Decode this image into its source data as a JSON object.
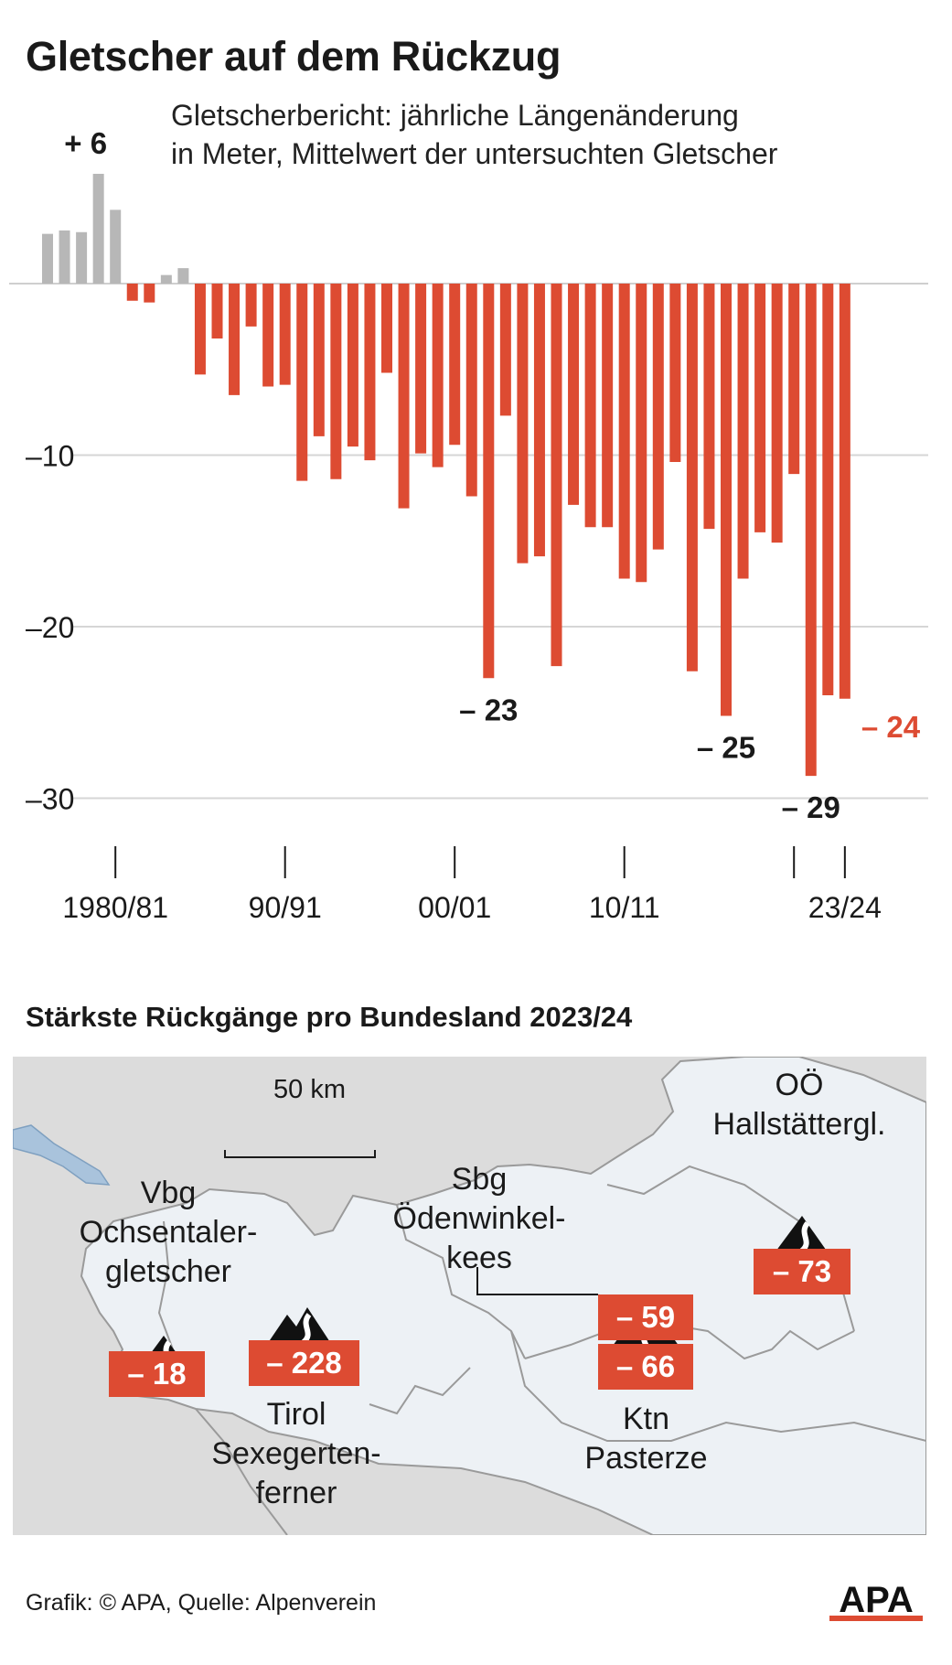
{
  "header": {
    "title": "Gletscher auf dem Rückzug",
    "subtitle_line1": "Gletscherbericht: jährliche Längenänderung",
    "subtitle_line2": "in Meter, Mittelwert der untersuchten Gletscher"
  },
  "chart_data": {
    "type": "bar",
    "ylabel": "",
    "xlabel": "",
    "ylim": [
      -33,
      8
    ],
    "y_ticks": [
      -10,
      -20,
      -30
    ],
    "y_tick_labels": [
      "–10",
      "–20",
      "–30"
    ],
    "x_tick_labels": [
      "1980/81",
      "90/91",
      "00/01",
      "10/11",
      "23/24"
    ],
    "x_tick_label_categories": [
      "1980/81",
      "1990/91",
      "2000/01",
      "2010/11",
      "2023/24"
    ],
    "extra_tick_category": "2020/21",
    "categories": [
      "1976/77",
      "1977/78",
      "1978/79",
      "1979/80",
      "1980/81",
      "1981/82",
      "1982/83",
      "1983/84",
      "1984/85",
      "1985/86",
      "1986/87",
      "1987/88",
      "1988/89",
      "1989/90",
      "1990/91",
      "1991/92",
      "1992/93",
      "1993/94",
      "1994/95",
      "1995/96",
      "1996/97",
      "1997/98",
      "1998/99",
      "1999/00",
      "2000/01",
      "2001/02",
      "2002/03",
      "2003/04",
      "2004/05",
      "2005/06",
      "2006/07",
      "2007/08",
      "2008/09",
      "2009/10",
      "2010/11",
      "2011/12",
      "2012/13",
      "2013/14",
      "2014/15",
      "2015/16",
      "2016/17",
      "2017/18",
      "2018/19",
      "2019/20",
      "2020/21",
      "2021/22",
      "2022/23",
      "2023/24"
    ],
    "values": [
      2.9,
      3.1,
      3.0,
      6.4,
      4.3,
      -1.0,
      -1.1,
      0.5,
      0.9,
      -5.3,
      -3.2,
      -6.5,
      -2.5,
      -6.0,
      -5.9,
      -11.5,
      -8.9,
      -11.4,
      -9.5,
      -10.3,
      -5.2,
      -13.1,
      -9.9,
      -10.7,
      -9.4,
      -12.4,
      -23.0,
      -7.7,
      -16.3,
      -15.9,
      -22.3,
      -12.9,
      -14.2,
      -14.2,
      -17.2,
      -17.4,
      -15.5,
      -10.4,
      -22.6,
      -14.3,
      -25.2,
      -17.2,
      -14.5,
      -15.1,
      -11.1,
      -28.7,
      -24.0,
      -24.2
    ],
    "positive_color": "#b7b7b7",
    "negative_color": "#dd4b32",
    "grid": true,
    "annotations": [
      {
        "category": "1979/80",
        "text": "+ 6",
        "color": "#1a1a1a"
      },
      {
        "category": "2002/03",
        "text": "– 23",
        "color": "#1a1a1a"
      },
      {
        "category": "2016/17",
        "text": "– 25",
        "color": "#1a1a1a"
      },
      {
        "category": "2021/22",
        "text": "– 29",
        "color": "#1a1a1a"
      },
      {
        "category": "2023/24",
        "text": "– 24",
        "color": "#dd4b32"
      }
    ]
  },
  "map": {
    "title": "Stärkste Rückgänge pro Bundesland  2023/24",
    "scale_label": "50 km",
    "vbg": {
      "state": "Vbg",
      "name_line1": "Ochsentaler-",
      "name_line2": "gletscher",
      "value": "– 18"
    },
    "tirol": {
      "state": "Tirol",
      "name_line1": "Sexegerten-",
      "name_line2": "ferner",
      "value": "– 228"
    },
    "sbg": {
      "state": "Sbg",
      "name_line1": "Ödenwinkel-",
      "name_line2": "kees",
      "value": "– 59"
    },
    "ktn": {
      "state": "Ktn",
      "name": "Pasterze",
      "value": "– 66"
    },
    "ooe": {
      "state": "OÖ",
      "name": "Hallstättergl.",
      "value": "– 73"
    }
  },
  "footer": {
    "credit": "Grafik: © APA, Quelle: Alpenverein",
    "logo": "APA"
  }
}
